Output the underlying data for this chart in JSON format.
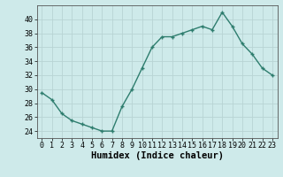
{
  "x": [
    0,
    1,
    2,
    3,
    4,
    5,
    6,
    7,
    8,
    9,
    10,
    11,
    12,
    13,
    14,
    15,
    16,
    17,
    18,
    19,
    20,
    21,
    22,
    23
  ],
  "y": [
    29.5,
    28.5,
    26.5,
    25.5,
    25.0,
    24.5,
    24.0,
    24.0,
    27.5,
    30.0,
    33.0,
    36.0,
    37.5,
    37.5,
    38.0,
    38.5,
    39.0,
    38.5,
    41.0,
    39.0,
    36.5,
    35.0,
    33.0,
    32.0
  ],
  "line_color": "#2e7d6e",
  "marker": "+",
  "marker_size": 3.5,
  "marker_lw": 1.0,
  "line_width": 1.0,
  "bg_color": "#ceeaea",
  "grid_color": "#b8d4d4",
  "xlabel": "Humidex (Indice chaleur)",
  "ylim": [
    23,
    42
  ],
  "xlim": [
    -0.5,
    23.5
  ],
  "yticks": [
    24,
    26,
    28,
    30,
    32,
    34,
    36,
    38,
    40
  ],
  "xticks": [
    0,
    1,
    2,
    3,
    4,
    5,
    6,
    7,
    8,
    9,
    10,
    11,
    12,
    13,
    14,
    15,
    16,
    17,
    18,
    19,
    20,
    21,
    22,
    23
  ],
  "tick_fontsize": 6,
  "xlabel_fontsize": 7.5,
  "spine_color": "#555555"
}
